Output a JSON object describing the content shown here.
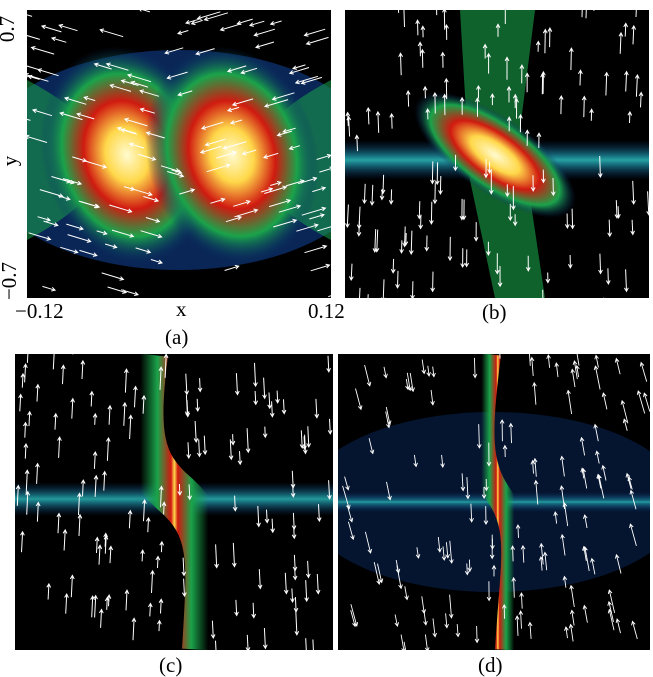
{
  "panels": [
    {
      "label": "(a)",
      "kind": "two-lobes"
    },
    {
      "label": "(b)",
      "kind": "tilted-sheet"
    },
    {
      "label": "(c)",
      "kind": "s-sheet"
    },
    {
      "label": "(d)",
      "kind": "thin-s-sheet"
    }
  ],
  "axes": {
    "x_label": "x",
    "y_label": "y",
    "x_min_label": "−0.12",
    "x_max_label": "0.12",
    "y_max_label": "0.7",
    "y_min_label": "−0.7"
  },
  "colors": {
    "background": "#000000",
    "low": "#0b2f6b",
    "mid": "#1aa34a",
    "high": "#d01a10",
    "peak": "#fffbd0",
    "arrows": "#ffffff"
  }
}
